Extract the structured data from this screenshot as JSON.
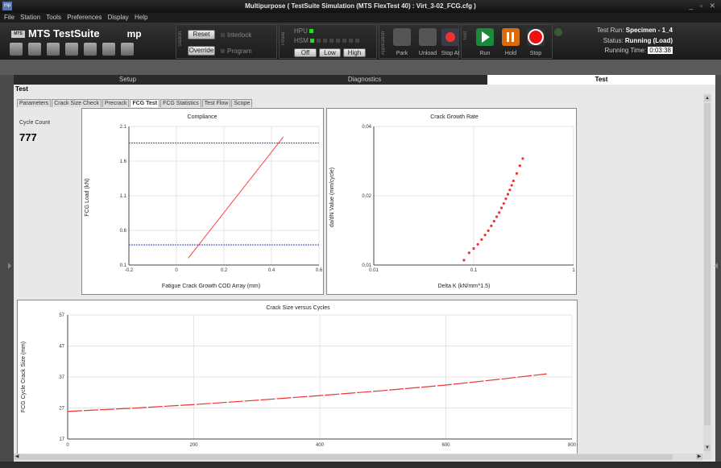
{
  "window": {
    "app_icon": "mp",
    "title": "Multipurpose ( TestSuite Simulation (MTS FlexTest 40) : Virt_3-02_FCG.cfg )",
    "controls": "_ ▫ ✕"
  },
  "menu": [
    "File",
    "Station",
    "Tools",
    "Preferences",
    "Display",
    "Help"
  ],
  "brand": {
    "logo": "MTS",
    "name": "MTS TestSuite",
    "module": "mp"
  },
  "station_panel": {
    "label": "Station",
    "reset": "Reset",
    "interlock": "Interlock",
    "override": "Override",
    "program": "Program"
  },
  "power_panel": {
    "label": "Power",
    "hpu": "HPU",
    "hsm": "HSM",
    "off": "Off",
    "low": "Low",
    "high": "High"
  },
  "application_panel": {
    "label": "Application",
    "park": "Park",
    "unload": "Unload",
    "stop_at": "Stop At"
  },
  "test_panel": {
    "label": "Test",
    "run": "Run",
    "hold": "Hold",
    "stop": "Stop"
  },
  "status": {
    "test_run_label": "Test Run:",
    "test_run": "Specimen - 1_4",
    "status_label": "Status:",
    "status": "Running (Load)",
    "running_time_label": "Running Time:",
    "running_time": "0:03:38"
  },
  "main_tabs": {
    "setup": "Setup",
    "diagnostics": "Diagnostics",
    "test": "Test"
  },
  "section_title": "Test",
  "sub_tabs": [
    "Parameters",
    "Crack Size Check",
    "Precrack",
    "FCG Test",
    "FCG Statistics",
    "Test Flow",
    "Scope"
  ],
  "active_sub_tab": "FCG Test",
  "cycle": {
    "label": "Cycle Count",
    "value": "777"
  },
  "charts": {
    "compliance": {
      "type": "line",
      "title": "Compliance",
      "xlabel": "Fatigue Crack Growth COD Array (mm)",
      "ylabel": "FCG Load (kN)",
      "xlim": [
        -0.2,
        0.6
      ],
      "ylim": [
        0.1,
        2.1
      ],
      "xticks": [
        "-0.2",
        "0",
        "0.2",
        "0.4",
        "0.6"
      ],
      "yticks": [
        "0.1",
        "0.6",
        "1.1",
        "1.6",
        "2.1"
      ],
      "line": [
        [
          0.05,
          0.2
        ],
        [
          0.45,
          1.95
        ]
      ],
      "ref_lines": [
        1.86,
        0.39
      ],
      "colors": {
        "line": "#ff4444",
        "ref": "#3344cc"
      }
    },
    "crack_growth_rate": {
      "type": "scatter",
      "title": "Crack Growth Rate",
      "xlabel": "Delta K (kN/mm^1.5)",
      "ylabel": "da/dN Value (mm/cycle)",
      "xticks": [
        "0.01",
        "0.1",
        "1"
      ],
      "yticks": [
        "0.01",
        "0.02",
        "0.04"
      ],
      "x": [
        0.08,
        0.09,
        0.1,
        0.11,
        0.12,
        0.13,
        0.14,
        0.15,
        0.16,
        0.17,
        0.18,
        0.19,
        0.2,
        0.21,
        0.22,
        0.23,
        0.24,
        0.25,
        0.27,
        0.29,
        0.31
      ],
      "y": [
        0.0105,
        0.0113,
        0.0118,
        0.0123,
        0.0129,
        0.0135,
        0.0141,
        0.0148,
        0.0155,
        0.0162,
        0.0169,
        0.0177,
        0.0185,
        0.0194,
        0.0203,
        0.0212,
        0.0222,
        0.0232,
        0.025,
        0.027,
        0.029
      ],
      "color": "#ee3333"
    },
    "crack_size": {
      "type": "line",
      "title": "Crack Size versus Cycles",
      "ylabel": "FCG Cycle Crack Size (mm)",
      "xlim": [
        0,
        800
      ],
      "ylim": [
        17,
        57
      ],
      "xticks": [
        "0",
        "200",
        "400",
        "600",
        "800"
      ],
      "yticks": [
        "17",
        "27",
        "37",
        "47",
        "57"
      ],
      "x": [
        0,
        100,
        200,
        300,
        400,
        500,
        600,
        700,
        760
      ],
      "y": [
        25.9,
        26.9,
        28.1,
        29.5,
        31.0,
        32.6,
        34.4,
        36.6,
        38.0
      ],
      "color": "#ee3333"
    }
  }
}
